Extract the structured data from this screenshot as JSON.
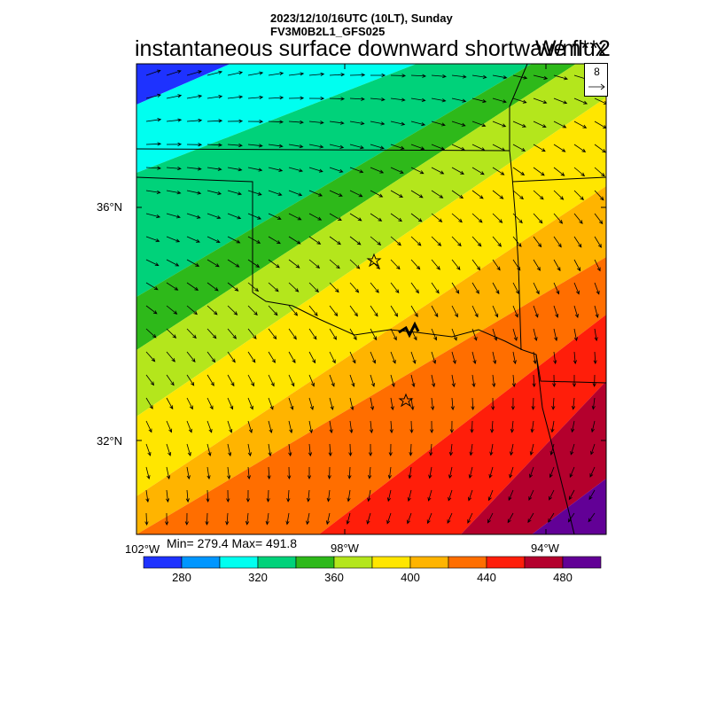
{
  "header": {
    "datetime": "2023/12/10/16UTC (10LT), Sunday",
    "model": "FV3M0B2L1_GFS025",
    "title": "instantaneous surface downward shortwave flux",
    "units": "W/m**2"
  },
  "axes": {
    "lat_labels": [
      "36°N",
      "32°N"
    ],
    "lon_labels": [
      "102°W",
      "98°W",
      "94°W"
    ]
  },
  "stats": {
    "text": "Min= 279.4 Max= 491.8"
  },
  "vector_reference": {
    "value": "8"
  },
  "colorbar": {
    "colors": [
      "#1e32ff",
      "#0096ff",
      "#00fff0",
      "#00d27a",
      "#2eb91a",
      "#b4e61c",
      "#ffe600",
      "#ffb400",
      "#ff6e00",
      "#ff1e0a",
      "#b4002d",
      "#620096"
    ],
    "labels": [
      "280",
      "320",
      "360",
      "400",
      "440",
      "480"
    ]
  },
  "map": {
    "markers": [
      "star",
      "star"
    ],
    "field_range": [
      279.4,
      491.8
    ]
  }
}
